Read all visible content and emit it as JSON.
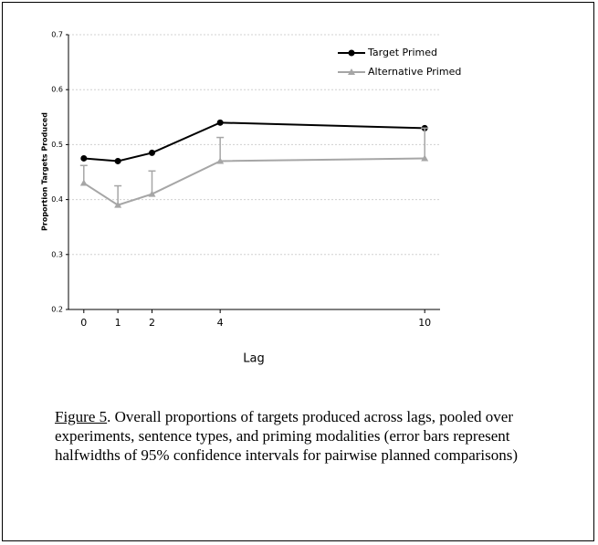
{
  "chart_data": {
    "type": "line",
    "x": [
      0,
      1,
      2,
      4,
      10
    ],
    "xlim": [
      -0.45,
      10.45
    ],
    "xticks": [
      0,
      1,
      2,
      4,
      10
    ],
    "ylim": [
      0.2,
      0.7
    ],
    "yticks": [
      0.2,
      0.3,
      0.4,
      0.5,
      0.6,
      0.7
    ],
    "xlabel": "Lag",
    "ylabel": "Proportion Targets Produced",
    "grid": true,
    "legend": "upper right",
    "series": [
      {
        "name": "Target Primed",
        "color": "#000000",
        "marker": "circle",
        "values": [
          0.475,
          0.47,
          0.485,
          0.54,
          0.53
        ]
      },
      {
        "name": "Alternative Primed",
        "color": "#a6a6a6",
        "marker": "triangle",
        "values": [
          0.43,
          0.39,
          0.41,
          0.47,
          0.475
        ],
        "errors": [
          0.032,
          0.035,
          0.042,
          0.043,
          0.055
        ]
      }
    ],
    "caption": {
      "label": "Figure 5",
      "text": ". Overall proportions of targets produced across lags, pooled over experiments, sentence types, and priming modalities (error bars represent halfwidths of 95% confidence intervals for pairwise planned comparisons)"
    }
  }
}
